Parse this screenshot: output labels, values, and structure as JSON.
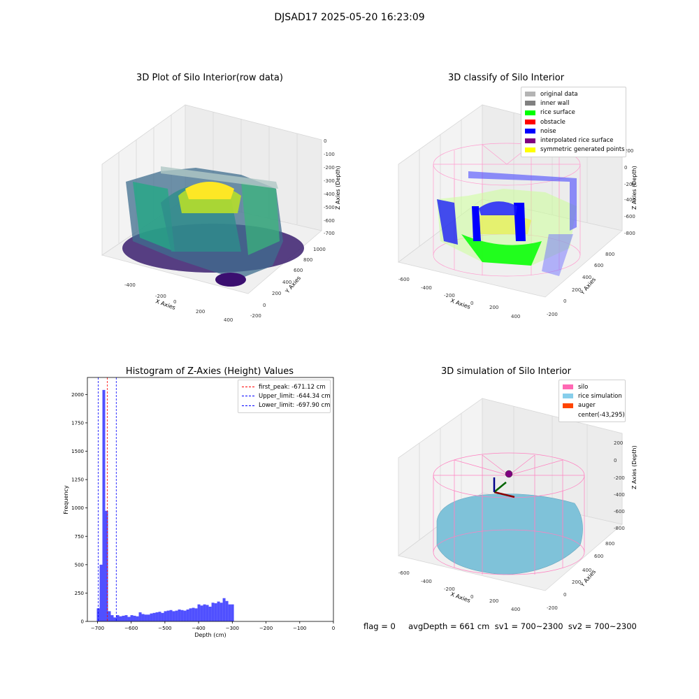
{
  "figure": {
    "suptitle": "DJSAD17 2025-05-20 16:23:09",
    "footer": "flag = 0     avgDepth = 661 cm  sv1 = 700~2300  sv2 = 700~2300"
  },
  "panels": {
    "raw": {
      "title": "3D Plot of Silo Interior(row data)",
      "xlabel": "X Axies",
      "ylabel": "Y Axies",
      "zlabel": "Z Axies (Depth)",
      "xticks": [
        "-400",
        "-200",
        "0",
        "200",
        "400"
      ],
      "yticks": [
        "-200",
        "0",
        "200",
        "400",
        "600",
        "800",
        "1000"
      ],
      "zticks": [
        "0",
        "-100",
        "-200",
        "-300",
        "-400",
        "-500",
        "-600",
        "-700"
      ]
    },
    "classify": {
      "title": "3D classify of Silo Interior",
      "xlabel": "X Axies",
      "ylabel": "Y Axies",
      "zlabel": "Z Axies (Depth)",
      "xticks": [
        "-600",
        "-400",
        "-200",
        "0",
        "200",
        "400"
      ],
      "yticks": [
        "-200",
        "0",
        "200",
        "400",
        "600",
        "800"
      ],
      "zticks": [
        "200",
        "0",
        "-200",
        "-400",
        "-600",
        "-800"
      ],
      "legend": [
        {
          "label": "original data",
          "color": "#b4b4b4"
        },
        {
          "label": "inner wall",
          "color": "#808080"
        },
        {
          "label": "rice surface",
          "color": "#00ff00"
        },
        {
          "label": "obstacle",
          "color": "#ff0000"
        },
        {
          "label": "noise",
          "color": "#0000ff"
        },
        {
          "label": "interpolated rice surface",
          "color": "#800080"
        },
        {
          "label": "symmetric generated points",
          "color": "#ffff00"
        }
      ]
    },
    "simulation": {
      "title": "3D simulation of Silo Interior",
      "xlabel": "X Axies",
      "ylabel": "Y Axies",
      "zlabel": "Z Axies (Depth)",
      "xticks": [
        "-600",
        "-400",
        "-200",
        "0",
        "200",
        "400"
      ],
      "yticks": [
        "-200",
        "0",
        "200",
        "400",
        "600",
        "800"
      ],
      "zticks": [
        "200",
        "0",
        "-200",
        "-400",
        "-600",
        "-800"
      ],
      "legend": [
        {
          "label": "silo",
          "color": "#ff69b4"
        },
        {
          "label": "rice simulation",
          "color": "#87ceeb"
        },
        {
          "label": "auger",
          "color": "#ff4500"
        },
        {
          "label": "center(-43,295)",
          "color": "#ffffff"
        }
      ]
    }
  },
  "chart_data": [
    {
      "type": "bar",
      "title": "Histogram of Z-Axies (Height) Values",
      "xlabel": "Depth (cm)",
      "ylabel": "Frequency",
      "xlim": [
        -730,
        0
      ],
      "ylim": [
        0,
        2150
      ],
      "xticks": [
        -700,
        -600,
        -500,
        -400,
        -300,
        -200,
        -100,
        0
      ],
      "yticks": [
        0,
        250,
        500,
        750,
        1000,
        1250,
        1500,
        1750,
        2000
      ],
      "bin_edges_start": -702,
      "bin_width": 8.3,
      "values": [
        115,
        500,
        2040,
        975,
        90,
        55,
        35,
        55,
        45,
        50,
        55,
        40,
        55,
        50,
        45,
        80,
        65,
        60,
        60,
        70,
        75,
        80,
        85,
        75,
        90,
        95,
        100,
        90,
        95,
        105,
        100,
        95,
        105,
        115,
        120,
        115,
        150,
        140,
        150,
        145,
        130,
        165,
        160,
        175,
        165,
        205,
        180,
        150,
        150
      ],
      "lines": [
        {
          "label": "first_peak: -671.12 cm",
          "value": -671.12,
          "color": "#ff0000"
        },
        {
          "label": "Upper_limit: -644.34 cm",
          "value": -644.34,
          "color": "#0000ff"
        },
        {
          "label": "Lower_limit: -697.90 cm",
          "value": -697.9,
          "color": "#0000ff"
        }
      ],
      "bar_color": "#5050ff"
    }
  ]
}
